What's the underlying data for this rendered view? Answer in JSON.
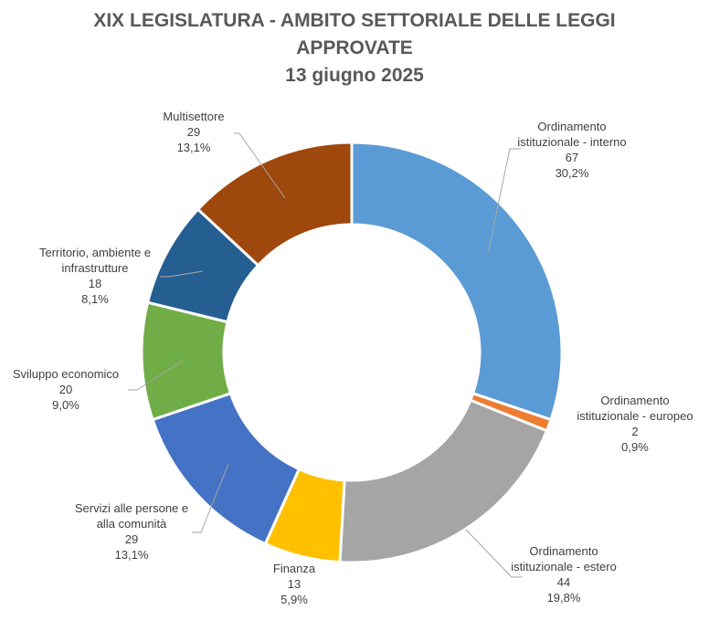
{
  "chart_data": {
    "type": "pie",
    "title_lines": [
      "XIX LEGISLATURA - AMBITO SETTORIALE DELLE LEGGI",
      "APPROVATE",
      "13 giugno 2025"
    ],
    "slices": [
      {
        "name_lines": [
          "Ordinamento",
          "istituzionale - interno"
        ],
        "value": 67,
        "percent": "30,2%",
        "value_text": "67",
        "color": "#5B9BD5"
      },
      {
        "name_lines": [
          "Ordinamento",
          "istituzionale - europeo"
        ],
        "value": 2,
        "percent": "0,9%",
        "value_text": "2",
        "color": "#ED7D31"
      },
      {
        "name_lines": [
          "Ordinamento",
          "istituzionale - estero"
        ],
        "value": 44,
        "percent": "19,8%",
        "value_text": "44",
        "color": "#A5A5A5"
      },
      {
        "name_lines": [
          "Finanza"
        ],
        "value": 13,
        "percent": "5,9%",
        "value_text": "13",
        "color": "#FFC000"
      },
      {
        "name_lines": [
          "Servizi alle persone e",
          "alla comunità"
        ],
        "value": 29,
        "percent": "13,1%",
        "value_text": "29",
        "color": "#4472C4"
      },
      {
        "name_lines": [
          "Sviluppo economico"
        ],
        "value": 20,
        "percent": "9,0%",
        "value_text": "20",
        "color": "#70AD47"
      },
      {
        "name_lines": [
          "Territorio, ambiente e",
          "infrastrutture"
        ],
        "value": 18,
        "percent": "8,1%",
        "value_text": "18",
        "color": "#255E91"
      },
      {
        "name_lines": [
          "Multisettore"
        ],
        "value": 29,
        "percent": "13,1%",
        "value_text": "29",
        "color": "#9E480E"
      }
    ]
  }
}
